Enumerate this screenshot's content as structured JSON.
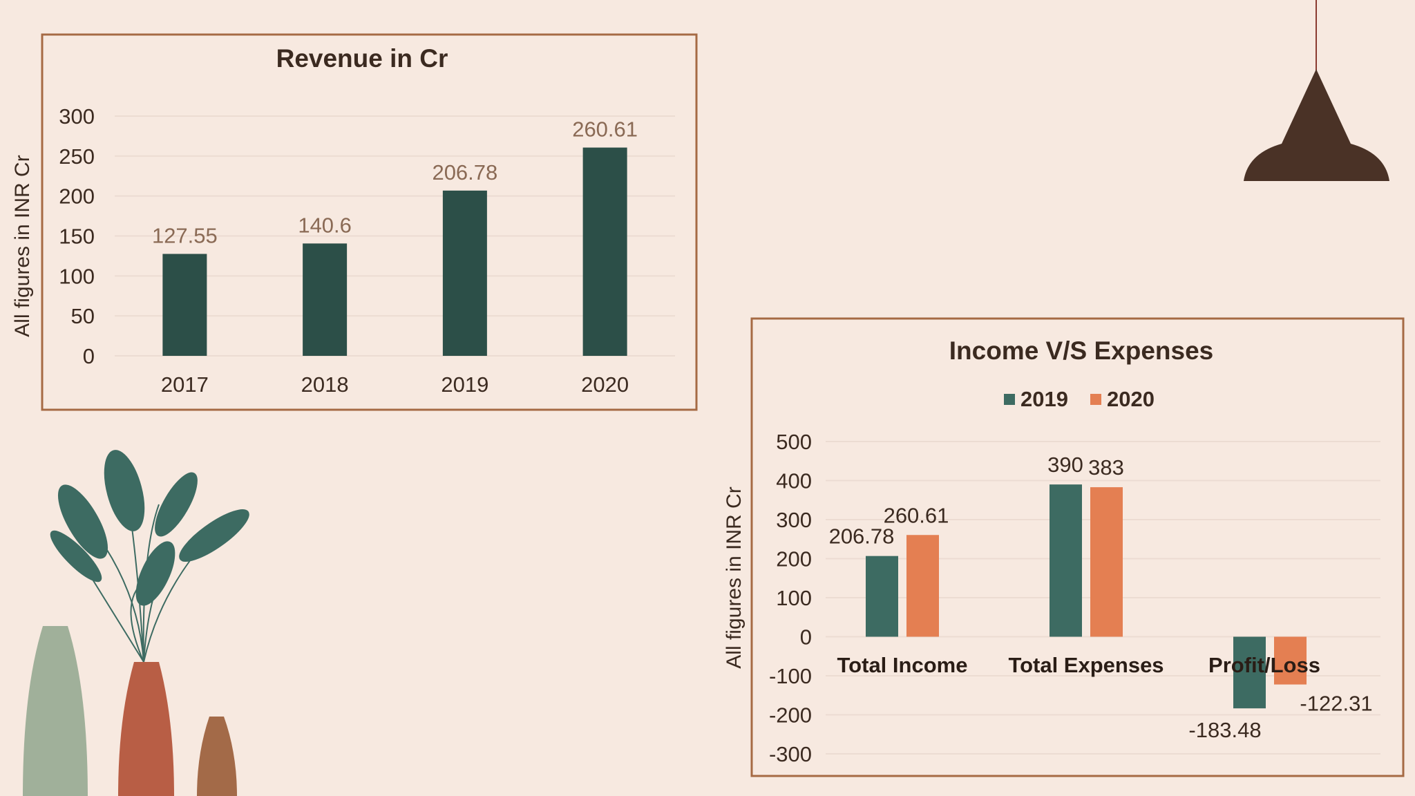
{
  "colors": {
    "background": "#f7e9e0",
    "frame": "#a66a44",
    "revenue_bar": "#2c4f48",
    "revenue_label": "#8a6a55",
    "series_2019": "#3d6b62",
    "series_2020": "#e47f52",
    "text": "#3b2a20"
  },
  "decorations": [
    "pendant-lamp",
    "plant-leaves",
    "vases"
  ],
  "chart_data": [
    {
      "type": "bar",
      "title": "Revenue in Cr",
      "ylabel": "All figures in INR Cr",
      "xlabel": "",
      "categories": [
        "2017",
        "2018",
        "2019",
        "2020"
      ],
      "values": [
        127.55,
        140.6,
        206.78,
        260.61
      ],
      "data_labels": [
        "127.55",
        "140.6",
        "206.78",
        "260.61"
      ],
      "ylim": [
        0,
        300
      ],
      "yticks": [
        0,
        50,
        100,
        150,
        200,
        250,
        300
      ],
      "grid": true,
      "legend": "none"
    },
    {
      "type": "bar",
      "title": "Income V/S Expenses",
      "ylabel": "All figures in INR Cr",
      "xlabel": "",
      "categories": [
        "Total Income",
        "Total Expenses",
        "Profit/Loss"
      ],
      "series": [
        {
          "name": "2019",
          "values": [
            206.78,
            390,
            -183.48
          ],
          "data_labels": [
            "206.78",
            "390",
            "-183.48"
          ]
        },
        {
          "name": "2020",
          "values": [
            260.61,
            383,
            -122.31
          ],
          "data_labels": [
            "260.61",
            "383",
            "-122.31"
          ]
        }
      ],
      "ylim": [
        -300,
        500
      ],
      "yticks": [
        -300,
        -200,
        -100,
        0,
        100,
        200,
        300,
        400,
        500
      ],
      "grid": true,
      "legend": "top"
    }
  ]
}
